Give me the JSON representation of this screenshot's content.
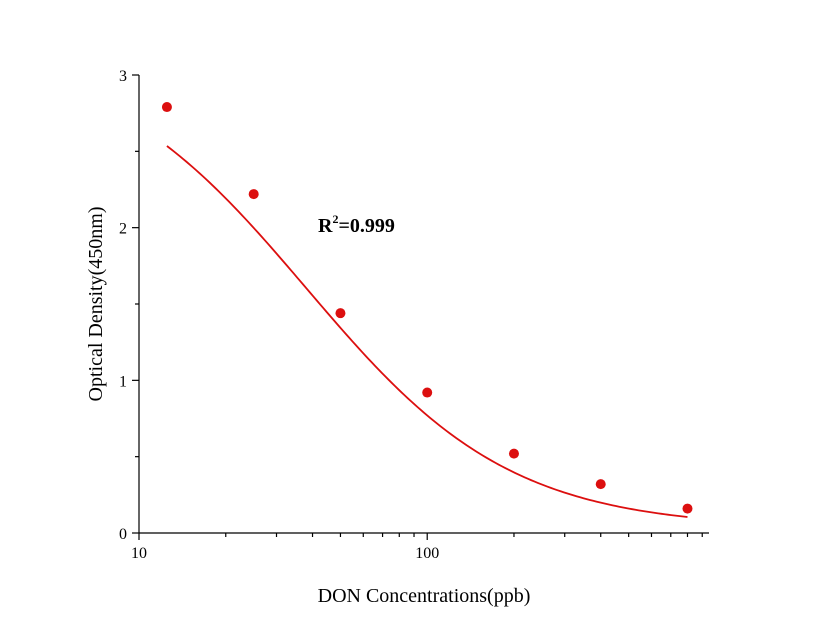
{
  "chart_data": {
    "type": "scatter",
    "title": "",
    "xlabel": "DON Concentrations(ppb)",
    "ylabel": "Optical Density(450nm)",
    "x_scale": "log",
    "xlim": [
      10,
      950
    ],
    "ylim": [
      0,
      3
    ],
    "x_ticks": [
      10,
      100
    ],
    "x_tick_labels": [
      "10",
      "100"
    ],
    "y_ticks": [
      0,
      1,
      2,
      3
    ],
    "y_tick_labels": [
      "0",
      "1",
      "2",
      "3"
    ],
    "grid": false,
    "legend": "none",
    "series": [
      {
        "x": [
          12.5,
          25,
          50,
          100,
          200,
          400,
          800
        ],
        "y": [
          2.79,
          2.22,
          1.44,
          0.92,
          0.52,
          0.32,
          0.16
        ],
        "fit_curve": "4-parameter logistic"
      }
    ],
    "annotations": [
      {
        "text_main": "R",
        "text_sup": "2",
        "text_rest": "=0.999"
      }
    ],
    "colors": {
      "series": "#dc0f0f",
      "axis": "#000000"
    }
  }
}
